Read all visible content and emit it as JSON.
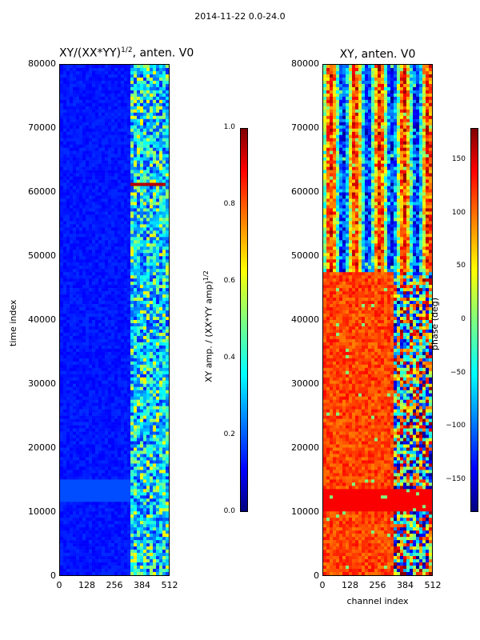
{
  "figure": {
    "suptitle": "2014-11-22 0.0-24.0"
  },
  "chart_data": [
    {
      "type": "heatmap",
      "title": "XY/(XX*YY)¹ᐟ², anten. V0",
      "xlabel": "",
      "ylabel": "time index",
      "x_ticks": [
        "0",
        "128",
        "256",
        "384",
        "512"
      ],
      "y_ticks": [
        "0",
        "10000",
        "20000",
        "30000",
        "40000",
        "50000",
        "60000",
        "70000",
        "80000"
      ],
      "xlim": [
        0,
        512
      ],
      "ylim": [
        0,
        80000
      ],
      "colorbar": {
        "label": "XY amp. / (XX*YY amp)¹ᐟ²",
        "range": [
          0.0,
          1.0
        ],
        "ticks": [
          "0.0",
          "0.2",
          "0.4",
          "0.6",
          "0.8",
          "1.0"
        ],
        "colormap": "jet"
      }
    },
    {
      "type": "heatmap",
      "title": "XY, anten. V0",
      "xlabel": "channel index",
      "ylabel": "",
      "x_ticks": [
        "0",
        "128",
        "256",
        "384",
        "512"
      ],
      "y_ticks": [
        "0",
        "10000",
        "20000",
        "30000",
        "40000",
        "50000",
        "60000",
        "70000",
        "80000"
      ],
      "xlim": [
        0,
        512
      ],
      "ylim": [
        0,
        80000
      ],
      "colorbar": {
        "label": "phase (deg)",
        "range": [
          -180,
          180
        ],
        "ticks": [
          "−150",
          "−100",
          "−50",
          "0",
          "50",
          "100",
          "150"
        ],
        "colormap": "jet"
      }
    }
  ],
  "colors": {
    "jet_dark_blue": "#00007f",
    "jet_blue": "#0000ff",
    "jet_cyan": "#00ffff",
    "jet_yellow": "#ffff00",
    "jet_red": "#ff0000",
    "jet_dark_red": "#7f0000"
  }
}
